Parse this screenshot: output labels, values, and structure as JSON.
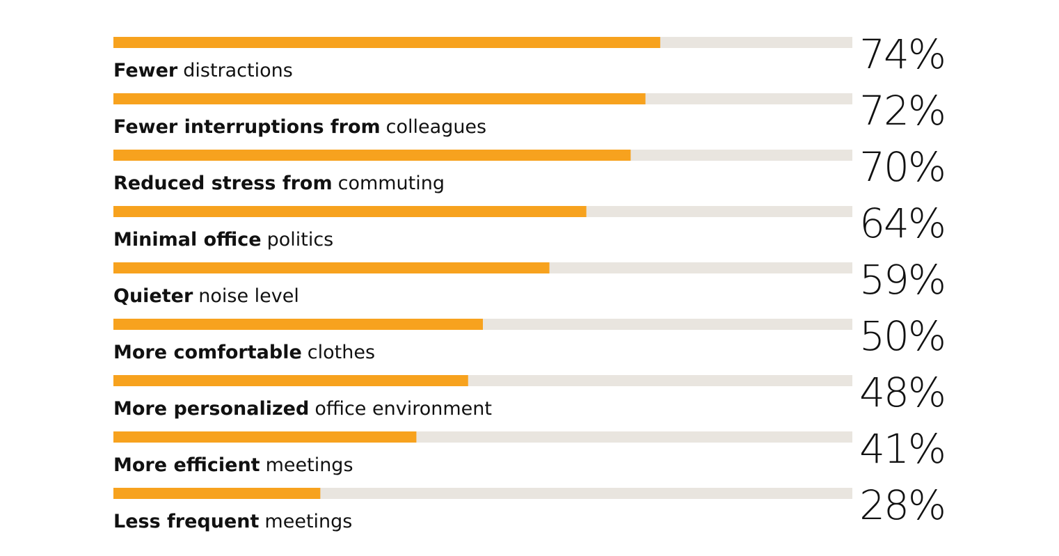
{
  "chart_data": {
    "type": "bar",
    "orientation": "horizontal",
    "categories": [
      [
        "Fewer",
        "distractions"
      ],
      [
        "Fewer interruptions from",
        "colleagues"
      ],
      [
        "Reduced stress from",
        "commuting"
      ],
      [
        "Minimal office",
        "politics"
      ],
      [
        "Quieter",
        "noise level"
      ],
      [
        "More comfortable",
        "clothes"
      ],
      [
        "More personalized",
        "office environment"
      ],
      [
        "More efficient",
        "meetings"
      ],
      [
        "Less frequent",
        "meetings"
      ]
    ],
    "values": [
      74,
      72,
      70,
      64,
      59,
      50,
      48,
      41,
      28
    ],
    "value_labels": [
      "74%",
      "72%",
      "70%",
      "64%",
      "59%",
      "50%",
      "48%",
      "41%",
      "28%"
    ],
    "xlim": [
      0,
      100
    ],
    "color": "#f7a21e",
    "track_color": "#e9e5df"
  }
}
